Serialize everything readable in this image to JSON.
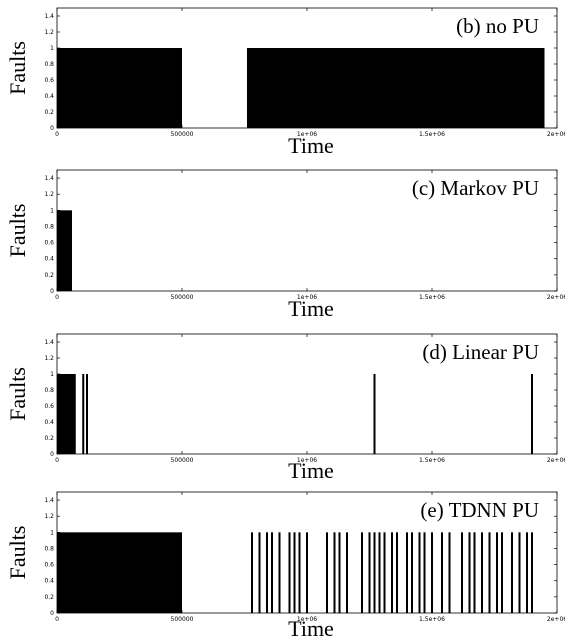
{
  "chart_data": [
    {
      "type": "bar",
      "title": "(b) no PU",
      "xlabel": "Time",
      "ylabel": "Faults",
      "xlim": [
        0,
        2000000
      ],
      "ylim": [
        0,
        1.5
      ],
      "xticks": [
        "0",
        "500000",
        "1e+06",
        "1.5e+06",
        "2e+06"
      ],
      "yticks": [
        "0",
        "0.2",
        "0.4",
        "0.6",
        "0.8",
        "1",
        "1.2",
        "1.4"
      ],
      "fault_intervals": [
        [
          0,
          500000
        ],
        [
          760000,
          1950000
        ]
      ],
      "fault_spikes": []
    },
    {
      "type": "bar",
      "title": "(c) Markov PU",
      "xlabel": "Time",
      "ylabel": "Faults",
      "xlim": [
        0,
        2000000
      ],
      "ylim": [
        0,
        1.5
      ],
      "xticks": [
        "0",
        "500000",
        "1e+06",
        "1.5e+06",
        "2e+06"
      ],
      "yticks": [
        "0",
        "0.2",
        "0.4",
        "0.6",
        "0.8",
        "1",
        "1.2",
        "1.4"
      ],
      "fault_intervals": [
        [
          0,
          60000
        ]
      ],
      "fault_spikes": []
    },
    {
      "type": "bar",
      "title": "(d) Linear PU",
      "xlabel": "Time",
      "ylabel": "Faults",
      "xlim": [
        0,
        2000000
      ],
      "ylim": [
        0,
        1.5
      ],
      "xticks": [
        "0",
        "500000",
        "1e+06",
        "1.5e+06",
        "2e+06"
      ],
      "yticks": [
        "0",
        "0.2",
        "0.4",
        "0.6",
        "0.8",
        "1",
        "1.2",
        "1.4"
      ],
      "fault_intervals": [
        [
          0,
          75000
        ]
      ],
      "fault_spikes": [
        105000,
        120000,
        1270000,
        1900000
      ]
    },
    {
      "type": "bar",
      "title": "(e) TDNN PU",
      "xlabel": "Time",
      "ylabel": "Faults",
      "xlim": [
        0,
        2000000
      ],
      "ylim": [
        0,
        1.5
      ],
      "xticks": [
        "0",
        "500000",
        "1e+06",
        "1.5e+06",
        "2e+06"
      ],
      "yticks": [
        "0",
        "0.2",
        "0.4",
        "0.6",
        "0.8",
        "1",
        "1.2",
        "1.4"
      ],
      "fault_intervals": [
        [
          0,
          170000
        ],
        [
          170000,
          300000
        ],
        [
          300000,
          500000
        ]
      ],
      "fault_spikes": [
        780000,
        810000,
        840000,
        860000,
        890000,
        930000,
        950000,
        970000,
        1000000,
        1080000,
        1110000,
        1130000,
        1160000,
        1220000,
        1250000,
        1270000,
        1290000,
        1310000,
        1340000,
        1360000,
        1400000,
        1420000,
        1450000,
        1470000,
        1500000,
        1540000,
        1570000,
        1620000,
        1650000,
        1670000,
        1700000,
        1730000,
        1760000,
        1780000,
        1820000,
        1850000,
        1880000,
        1900000
      ]
    }
  ]
}
